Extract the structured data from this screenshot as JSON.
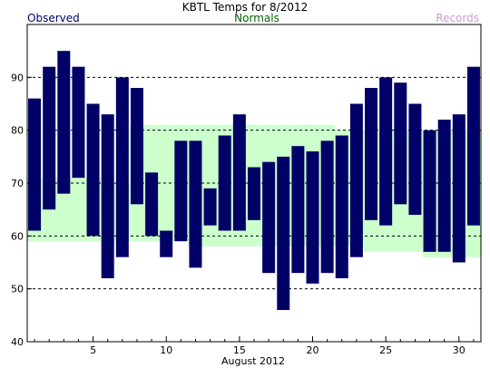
{
  "colors": {
    "observed": "#000066",
    "normals_band": "#ccffcc",
    "normals_label": "#006600",
    "records_label": "#cc99cc",
    "axis": "#000000",
    "grid": "#000000"
  },
  "chart_data": {
    "type": "bar",
    "title": "KBTL Temps for 8/2012",
    "xlabel": "August 2012",
    "ylabel": "",
    "legend": {
      "observed": "Observed",
      "normals": "Normals",
      "records": "Records"
    },
    "ylim": [
      40,
      100
    ],
    "y_ticks": [
      40,
      50,
      60,
      70,
      80,
      90
    ],
    "x_ticks": [
      5,
      10,
      15,
      20,
      25,
      30
    ],
    "grid_lines_y": [
      50,
      60,
      70,
      80,
      90
    ],
    "days": [
      1,
      2,
      3,
      4,
      5,
      6,
      7,
      8,
      9,
      10,
      11,
      12,
      13,
      14,
      15,
      16,
      17,
      18,
      19,
      20,
      21,
      22,
      23,
      24,
      25,
      26,
      27,
      28,
      29,
      30,
      31
    ],
    "observed_high": [
      86,
      92,
      95,
      92,
      85,
      83,
      90,
      88,
      72,
      61,
      78,
      78,
      69,
      79,
      83,
      73,
      74,
      75,
      77,
      76,
      78,
      79,
      85,
      88,
      90,
      89,
      85,
      80,
      82,
      83,
      92
    ],
    "observed_low": [
      61,
      65,
      68,
      71,
      60,
      52,
      56,
      66,
      60,
      56,
      59,
      54,
      62,
      61,
      61,
      63,
      53,
      46,
      53,
      51,
      53,
      52,
      56,
      63,
      62,
      66,
      64,
      57,
      57,
      55,
      62
    ],
    "normal_high": [
      71,
      71,
      71,
      71,
      71,
      70,
      70,
      81,
      81,
      81,
      81,
      81,
      81,
      81,
      81,
      81,
      81,
      81,
      81,
      81,
      81,
      80,
      80,
      80,
      80,
      80,
      80,
      80,
      80,
      80,
      80
    ],
    "normal_low": [
      59,
      59,
      59,
      59,
      59,
      59,
      59,
      59,
      59,
      59,
      59,
      58,
      58,
      58,
      58,
      58,
      58,
      58,
      58,
      58,
      58,
      58,
      58,
      57,
      57,
      57,
      57,
      56,
      56,
      56,
      56
    ]
  }
}
